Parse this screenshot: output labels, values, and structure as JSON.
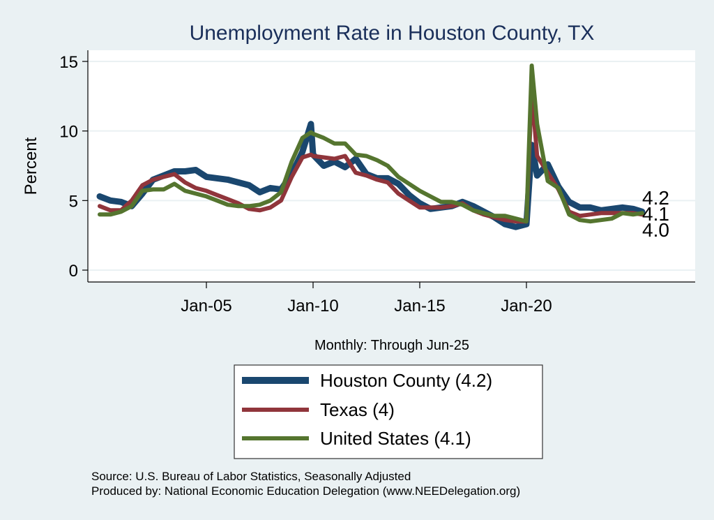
{
  "chart_data": {
    "type": "line",
    "title": "Unemployment Rate in Houston  County, TX",
    "ylabel": "Percent",
    "xlabel": "Monthly: Through Jun-25",
    "ylim": [
      0,
      15
    ],
    "xlim": [
      1999.5,
      2028.0
    ],
    "grid": true,
    "yticks": [
      0,
      5,
      10,
      15
    ],
    "yticklabels": [
      "0",
      "5",
      "10",
      "15"
    ],
    "xticks": [
      2005,
      2010,
      2015,
      2020
    ],
    "xticklabels": [
      "Jan-05",
      "Jan-10",
      "Jan-15",
      "Jan-20"
    ],
    "legend_position": "bottom",
    "x": [
      2000.0,
      2000.5,
      2001.0,
      2001.5,
      2002.0,
      2002.5,
      2003.0,
      2003.5,
      2004.0,
      2004.5,
      2005.0,
      2005.5,
      2006.0,
      2006.5,
      2007.0,
      2007.5,
      2008.0,
      2008.5,
      2009.0,
      2009.5,
      2009.9,
      2010.0,
      2010.5,
      2011.0,
      2011.5,
      2012.0,
      2012.5,
      2013.0,
      2013.5,
      2014.0,
      2014.5,
      2015.0,
      2015.5,
      2016.0,
      2016.5,
      2017.0,
      2017.5,
      2018.0,
      2018.5,
      2019.0,
      2019.5,
      2020.0,
      2020.25,
      2020.5,
      2021.0,
      2021.5,
      2022.0,
      2022.5,
      2023.0,
      2023.5,
      2024.0,
      2024.5,
      2025.0,
      2025.42
    ],
    "series": [
      {
        "name": "Houston  County",
        "legend": "Houston  County (4.2)",
        "end_label": "4.2",
        "color": "#1a476f",
        "width": 9,
        "values": [
          5.3,
          5.0,
          4.9,
          4.6,
          5.5,
          6.5,
          6.8,
          7.1,
          7.1,
          7.2,
          6.7,
          6.6,
          6.5,
          6.3,
          6.1,
          5.6,
          5.9,
          5.8,
          6.9,
          8.5,
          10.5,
          8.3,
          7.5,
          7.8,
          7.4,
          8.0,
          6.9,
          6.6,
          6.6,
          6.2,
          5.4,
          4.8,
          4.4,
          4.5,
          4.6,
          4.9,
          4.6,
          4.2,
          3.8,
          3.3,
          3.1,
          3.3,
          9.0,
          6.8,
          7.6,
          6.0,
          4.9,
          4.5,
          4.5,
          4.3,
          4.4,
          4.5,
          4.4,
          4.2
        ]
      },
      {
        "name": "Texas",
        "legend": "Texas (4)",
        "end_label": "4.0",
        "color": "#90353b",
        "width": 6,
        "values": [
          4.6,
          4.3,
          4.3,
          5.0,
          6.1,
          6.5,
          6.7,
          6.9,
          6.3,
          5.9,
          5.7,
          5.4,
          5.1,
          4.8,
          4.4,
          4.3,
          4.5,
          5.0,
          6.7,
          8.1,
          8.3,
          8.2,
          8.1,
          8.0,
          8.2,
          7.0,
          6.8,
          6.5,
          6.3,
          5.5,
          5.0,
          4.5,
          4.5,
          4.5,
          4.6,
          4.8,
          4.3,
          4.0,
          3.8,
          3.6,
          3.5,
          3.5,
          12.9,
          8.2,
          7.0,
          5.8,
          4.2,
          3.9,
          4.0,
          4.1,
          4.1,
          4.1,
          4.1,
          4.0
        ]
      },
      {
        "name": "United States",
        "legend": "United States (4.1)",
        "end_label": "4.1",
        "color": "#55752f",
        "width": 6,
        "values": [
          4.0,
          4.0,
          4.2,
          4.6,
          5.7,
          5.8,
          5.8,
          6.2,
          5.7,
          5.5,
          5.3,
          5.0,
          4.7,
          4.6,
          4.6,
          4.7,
          5.0,
          5.6,
          7.8,
          9.5,
          9.9,
          9.8,
          9.5,
          9.1,
          9.1,
          8.3,
          8.2,
          7.9,
          7.5,
          6.7,
          6.2,
          5.7,
          5.3,
          4.9,
          4.9,
          4.7,
          4.3,
          4.1,
          3.9,
          3.9,
          3.7,
          3.5,
          14.7,
          10.5,
          6.4,
          5.9,
          4.0,
          3.6,
          3.5,
          3.6,
          3.7,
          4.1,
          4.0,
          4.1
        ]
      }
    ]
  },
  "source_lines": [
    "Source: U.S. Bureau of Labor Statistics, Seasonally Adjusted",
    "Produced by: National Economic Education Delegation (www.NEEDelegation.org)"
  ],
  "colors": {
    "background": "#eaf1f3",
    "plot_background": "#ffffff",
    "gridline": "#eaf1f3",
    "title": "#1a2f5a"
  }
}
